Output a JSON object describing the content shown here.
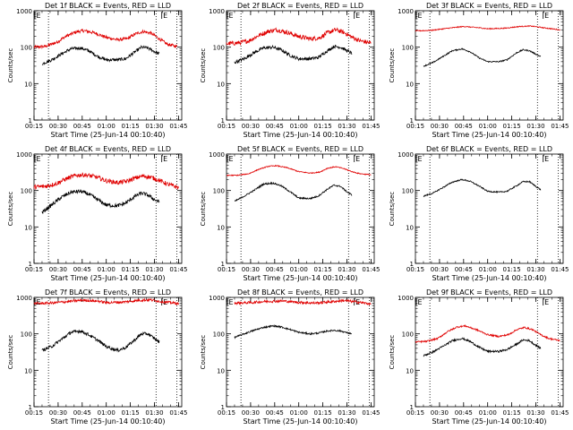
{
  "colors": {
    "events": "#000000",
    "lld": "#e00000",
    "axes": "#000000",
    "marker": "#000000"
  },
  "chart_data": [
    {
      "type": "line",
      "title": "Det 1f BLACK = Events, RED = LLD",
      "xlabel": "Start Time (25-Jun-14 00:10:40)",
      "ylabel": "Counts/sec",
      "xlim": [
        "00:15",
        "01:47"
      ],
      "ylim": [
        1,
        1000
      ],
      "yscale": "log",
      "xticks": [
        "00:15",
        "00:30",
        "00:45",
        "01:00",
        "01:15",
        "01:30",
        "01:45"
      ],
      "yticks": [
        "1",
        "10",
        "100",
        "1000"
      ],
      "marker_labels": [
        "E",
        "E"
      ],
      "marker_times": [
        "00:15",
        "01:34"
      ],
      "dotted_lines": [
        "00:24",
        "01:31",
        "01:44"
      ],
      "series": [
        {
          "name": "LLD",
          "color": "#e00000",
          "noise": 0.1,
          "x": [
            "00:15",
            "00:22",
            "00:29",
            "00:35",
            "00:41",
            "00:46",
            "00:53",
            "01:00",
            "01:07",
            "01:13",
            "01:18",
            "01:23",
            "01:28",
            "01:33",
            "01:38",
            "01:44"
          ],
          "y": [
            100,
            105,
            135,
            200,
            260,
            285,
            245,
            185,
            160,
            170,
            230,
            270,
            240,
            170,
            120,
            105
          ]
        },
        {
          "name": "Events",
          "color": "#000000",
          "noise": 0.1,
          "x": [
            "00:20",
            "00:26",
            "00:32",
            "00:38",
            "00:44",
            "00:49",
            "00:55",
            "01:00",
            "01:07",
            "01:12",
            "01:18",
            "01:22",
            "01:26",
            "01:29",
            "01:33"
          ],
          "y": [
            35,
            45,
            65,
            90,
            95,
            80,
            55,
            45,
            45,
            48,
            75,
            100,
            95,
            80,
            65
          ]
        }
      ]
    },
    {
      "type": "line",
      "title": "Det 2f BLACK = Events, RED = LLD",
      "xlabel": "Start Time (25-Jun-14 00:10:40)",
      "ylabel": "Counts/sec",
      "xlim": [
        "00:15",
        "01:47"
      ],
      "ylim": [
        1,
        1000
      ],
      "yscale": "log",
      "xticks": [
        "00:15",
        "00:30",
        "00:45",
        "01:00",
        "01:15",
        "01:30",
        "01:45"
      ],
      "yticks": [
        "1",
        "10",
        "100",
        "1000"
      ],
      "marker_labels": [
        "E",
        "E"
      ],
      "marker_times": [
        "00:15",
        "01:34"
      ],
      "dotted_lines": [
        "00:24",
        "01:31",
        "01:44"
      ],
      "series": [
        {
          "name": "LLD",
          "color": "#e00000",
          "noise": 0.14,
          "x": [
            "00:15",
            "00:22",
            "00:29",
            "00:35",
            "00:41",
            "00:46",
            "00:53",
            "01:00",
            "01:07",
            "01:13",
            "01:18",
            "01:23",
            "01:28",
            "01:33",
            "01:38",
            "01:45"
          ],
          "y": [
            125,
            130,
            150,
            210,
            270,
            300,
            255,
            195,
            170,
            180,
            250,
            300,
            255,
            190,
            150,
            130
          ]
        },
        {
          "name": "Events",
          "color": "#000000",
          "noise": 0.1,
          "x": [
            "00:20",
            "00:26",
            "00:32",
            "00:38",
            "00:44",
            "00:49",
            "00:55",
            "01:00",
            "01:07",
            "01:12",
            "01:18",
            "01:22",
            "01:26",
            "01:29",
            "01:33"
          ],
          "y": [
            38,
            48,
            70,
            95,
            100,
            85,
            58,
            48,
            48,
            52,
            80,
            105,
            100,
            85,
            68
          ]
        }
      ]
    },
    {
      "type": "line",
      "title": "Det 3f BLACK = Events, RED = LLD",
      "xlabel": "Start Time (25-Jun-14 00:10:40)",
      "ylabel": "Counts/sec",
      "xlim": [
        "00:15",
        "01:47"
      ],
      "ylim": [
        1,
        1000
      ],
      "yscale": "log",
      "xticks": [
        "00:15",
        "00:30",
        "00:45",
        "01:00",
        "01:15",
        "01:30",
        "01:45"
      ],
      "yticks": [
        "1",
        "10",
        "100",
        "1000"
      ],
      "marker_labels": [
        "E",
        "E"
      ],
      "marker_times": [
        "00:15",
        "01:34"
      ],
      "dotted_lines": [
        "00:24",
        "01:31",
        "01:44"
      ],
      "series": [
        {
          "name": "LLD",
          "color": "#e00000",
          "noise": 0.03,
          "x": [
            "00:15",
            "00:25",
            "00:35",
            "00:45",
            "00:55",
            "01:00",
            "01:10",
            "01:20",
            "01:27",
            "01:35",
            "01:45"
          ],
          "y": [
            280,
            290,
            330,
            370,
            340,
            320,
            330,
            370,
            380,
            340,
            300
          ]
        },
        {
          "name": "Events",
          "color": "#000000",
          "noise": 0.04,
          "x": [
            "00:20",
            "00:26",
            "00:32",
            "00:38",
            "00:44",
            "00:49",
            "00:55",
            "01:00",
            "01:07",
            "01:12",
            "01:18",
            "01:22",
            "01:26",
            "01:29",
            "01:33"
          ],
          "y": [
            30,
            38,
            55,
            80,
            90,
            75,
            50,
            40,
            40,
            45,
            70,
            85,
            80,
            68,
            55
          ]
        }
      ]
    },
    {
      "type": "line",
      "title": "Det 4f BLACK = Events, RED = LLD",
      "xlabel": "Start Time (25-Jun-14 00:10:40)",
      "ylabel": "Counts/sec",
      "xlim": [
        "00:15",
        "01:47"
      ],
      "ylim": [
        1,
        1000
      ],
      "yscale": "log",
      "xticks": [
        "00:15",
        "00:30",
        "00:45",
        "01:00",
        "01:15",
        "01:30",
        "01:45"
      ],
      "yticks": [
        "1",
        "10",
        "100",
        "1000"
      ],
      "marker_labels": [
        "E",
        "E"
      ],
      "marker_times": [
        "00:15",
        "01:34"
      ],
      "dotted_lines": [
        "00:24",
        "01:31",
        "01:44"
      ],
      "series": [
        {
          "name": "LLD",
          "color": "#e00000",
          "noise": 0.14,
          "x": [
            "00:15",
            "00:22",
            "00:29",
            "00:35",
            "00:41",
            "00:46",
            "00:53",
            "01:00",
            "01:07",
            "01:13",
            "01:18",
            "01:23",
            "01:28",
            "01:33",
            "01:38",
            "01:45"
          ],
          "y": [
            125,
            130,
            155,
            210,
            260,
            270,
            240,
            185,
            165,
            180,
            220,
            250,
            230,
            190,
            150,
            120
          ]
        },
        {
          "name": "Events",
          "color": "#000000",
          "noise": 0.12,
          "x": [
            "00:20",
            "00:26",
            "00:32",
            "00:38",
            "00:44",
            "00:49",
            "00:55",
            "01:00",
            "01:07",
            "01:12",
            "01:18",
            "01:22",
            "01:26",
            "01:29",
            "01:33"
          ],
          "y": [
            25,
            40,
            65,
            90,
            95,
            80,
            55,
            40,
            38,
            45,
            70,
            85,
            75,
            60,
            48
          ]
        }
      ]
    },
    {
      "type": "line",
      "title": "Det 5f BLACK = Events, RED = LLD",
      "xlabel": "Start Time (25-Jun-14 00:10:40)",
      "ylabel": "Counts/sec",
      "xlim": [
        "00:15",
        "01:47"
      ],
      "ylim": [
        1,
        1000
      ],
      "yscale": "log",
      "xticks": [
        "00:15",
        "00:30",
        "00:45",
        "01:00",
        "01:15",
        "01:30",
        "01:45"
      ],
      "yticks": [
        "1",
        "10",
        "100",
        "1000"
      ],
      "marker_labels": [
        "E",
        "E"
      ],
      "marker_times": [
        "00:15",
        "01:34"
      ],
      "dotted_lines": [
        "00:24",
        "01:31",
        "01:44"
      ],
      "series": [
        {
          "name": "LLD",
          "color": "#e00000",
          "noise": 0.03,
          "x": [
            "00:15",
            "00:22",
            "00:29",
            "00:35",
            "00:41",
            "00:46",
            "00:53",
            "01:00",
            "01:07",
            "01:13",
            "01:18",
            "01:23",
            "01:28",
            "01:33",
            "01:38",
            "01:45"
          ],
          "y": [
            260,
            262,
            290,
            380,
            460,
            480,
            420,
            330,
            300,
            320,
            410,
            450,
            400,
            330,
            290,
            270
          ]
        },
        {
          "name": "Events",
          "color": "#000000",
          "noise": 0.05,
          "x": [
            "00:20",
            "00:26",
            "00:32",
            "00:38",
            "00:44",
            "00:49",
            "00:55",
            "01:00",
            "01:07",
            "01:12",
            "01:18",
            "01:22",
            "01:26",
            "01:29",
            "01:33"
          ],
          "y": [
            50,
            70,
            100,
            150,
            160,
            135,
            90,
            62,
            60,
            70,
            110,
            140,
            130,
            100,
            75
          ]
        }
      ]
    },
    {
      "type": "line",
      "title": "Det 6f BLACK = Events, RED = LLD",
      "xlabel": "Start Time (25-Jun-14 00:10:40)",
      "ylabel": "Counts/sec",
      "xlim": [
        "00:15",
        "01:47"
      ],
      "ylim": [
        1,
        1000
      ],
      "yscale": "log",
      "xticks": [
        "00:15",
        "00:30",
        "00:45",
        "01:00",
        "01:15",
        "01:30",
        "01:45"
      ],
      "yticks": [
        "1",
        "10",
        "100",
        "1000"
      ],
      "marker_labels": [
        "E",
        "E"
      ],
      "marker_times": [
        "00:15",
        "01:34"
      ],
      "dotted_lines": [
        "00:24",
        "01:31",
        "01:44"
      ],
      "series": [
        {
          "name": "Events",
          "color": "#000000",
          "noise": 0.04,
          "x": [
            "00:20",
            "00:26",
            "00:32",
            "00:38",
            "00:44",
            "00:49",
            "00:55",
            "01:00",
            "01:07",
            "01:12",
            "01:18",
            "01:22",
            "01:26",
            "01:29",
            "01:33"
          ],
          "y": [
            70,
            85,
            120,
            170,
            200,
            180,
            130,
            95,
            90,
            95,
            135,
            175,
            175,
            140,
            105
          ]
        }
      ]
    },
    {
      "type": "line",
      "title": "Det 7f BLACK = Events, RED = LLD",
      "xlabel": "Start Time (25-Jun-14 00:10:40)",
      "ylabel": "Counts/sec",
      "xlim": [
        "00:15",
        "01:47"
      ],
      "ylim": [
        1,
        1000
      ],
      "yscale": "log",
      "xticks": [
        "00:15",
        "00:30",
        "00:45",
        "01:00",
        "01:15",
        "01:30",
        "01:45"
      ],
      "yticks": [
        "1",
        "10",
        "100",
        "1000"
      ],
      "marker_labels": [
        "E",
        "E"
      ],
      "marker_times": [
        "00:15",
        "01:34"
      ],
      "dotted_lines": [
        "00:24",
        "01:31",
        "01:44"
      ],
      "series": [
        {
          "name": "LLD",
          "color": "#e00000",
          "noise": 0.08,
          "x": [
            "00:15",
            "00:25",
            "00:35",
            "00:45",
            "00:55",
            "01:00",
            "01:10",
            "01:20",
            "01:27",
            "01:35",
            "01:45"
          ],
          "y": [
            680,
            700,
            760,
            840,
            790,
            720,
            740,
            830,
            860,
            760,
            680
          ]
        },
        {
          "name": "Events",
          "color": "#000000",
          "noise": 0.1,
          "x": [
            "00:20",
            "00:26",
            "00:32",
            "00:38",
            "00:44",
            "00:49",
            "00:55",
            "01:00",
            "01:07",
            "01:12",
            "01:18",
            "01:22",
            "01:26",
            "01:29",
            "01:33"
          ],
          "y": [
            35,
            45,
            70,
            110,
            120,
            95,
            65,
            45,
            35,
            42,
            70,
            100,
            100,
            80,
            60
          ]
        }
      ]
    },
    {
      "type": "line",
      "title": "Det 8f BLACK = Events, RED = LLD",
      "xlabel": "Start Time (25-Jun-14 00:10:40)",
      "ylabel": "Counts/sec",
      "xlim": [
        "00:15",
        "01:47"
      ],
      "ylim": [
        1,
        1000
      ],
      "yscale": "log",
      "xticks": [
        "00:15",
        "00:30",
        "00:45",
        "01:00",
        "01:15",
        "01:30",
        "01:45"
      ],
      "yticks": [
        "1",
        "10",
        "100",
        "1000"
      ],
      "marker_labels": [
        "E",
        "E"
      ],
      "marker_times": [
        "00:15",
        "01:34"
      ],
      "dotted_lines": [
        "00:24",
        "01:31",
        "01:44"
      ],
      "series": [
        {
          "name": "LLD",
          "color": "#e00000",
          "noise": 0.08,
          "x": [
            "00:20",
            "00:30",
            "00:40",
            "00:50",
            "01:00",
            "01:10",
            "01:20",
            "01:28",
            "01:35",
            "01:45"
          ],
          "y": [
            700,
            720,
            780,
            800,
            730,
            700,
            760,
            820,
            760,
            660
          ]
        },
        {
          "name": "Events",
          "color": "#000000",
          "noise": 0.05,
          "x": [
            "00:20",
            "00:26",
            "00:32",
            "00:38",
            "00:44",
            "00:49",
            "00:55",
            "01:00",
            "01:07",
            "01:12",
            "01:18",
            "01:22",
            "01:26",
            "01:29",
            "01:33"
          ],
          "y": [
            80,
            100,
            125,
            150,
            165,
            155,
            130,
            110,
            100,
            105,
            120,
            125,
            120,
            110,
            100
          ]
        }
      ]
    },
    {
      "type": "line",
      "title": "Det 9f BLACK = Events, RED = LLD",
      "xlabel": "Start Time (25-Jun-14 00:10:40)",
      "ylabel": "Counts/sec",
      "xlim": [
        "00:15",
        "01:47"
      ],
      "ylim": [
        1,
        1000
      ],
      "yscale": "log",
      "xticks": [
        "00:15",
        "00:30",
        "00:45",
        "01:00",
        "01:15",
        "01:30",
        "01:45"
      ],
      "yticks": [
        "1",
        "10",
        "100",
        "1000"
      ],
      "marker_labels": [
        "E",
        "E"
      ],
      "marker_times": [
        "00:15",
        "01:34"
      ],
      "dotted_lines": [
        "00:24",
        "01:31",
        "01:44"
      ],
      "series": [
        {
          "name": "LLD",
          "color": "#e00000",
          "noise": 0.05,
          "x": [
            "00:15",
            "00:22",
            "00:29",
            "00:35",
            "00:41",
            "00:46",
            "00:53",
            "01:00",
            "01:07",
            "01:13",
            "01:18",
            "01:23",
            "01:28",
            "01:33",
            "01:38",
            "01:45"
          ],
          "y": [
            60,
            62,
            75,
            115,
            155,
            165,
            130,
            95,
            85,
            95,
            130,
            150,
            130,
            95,
            75,
            65
          ]
        },
        {
          "name": "Events",
          "color": "#000000",
          "noise": 0.06,
          "x": [
            "00:20",
            "00:26",
            "00:32",
            "00:38",
            "00:44",
            "00:49",
            "00:55",
            "01:00",
            "01:07",
            "01:12",
            "01:18",
            "01:22",
            "01:26",
            "01:29",
            "01:33"
          ],
          "y": [
            25,
            32,
            45,
            65,
            75,
            62,
            42,
            33,
            33,
            37,
            52,
            68,
            65,
            52,
            40
          ]
        }
      ]
    }
  ]
}
